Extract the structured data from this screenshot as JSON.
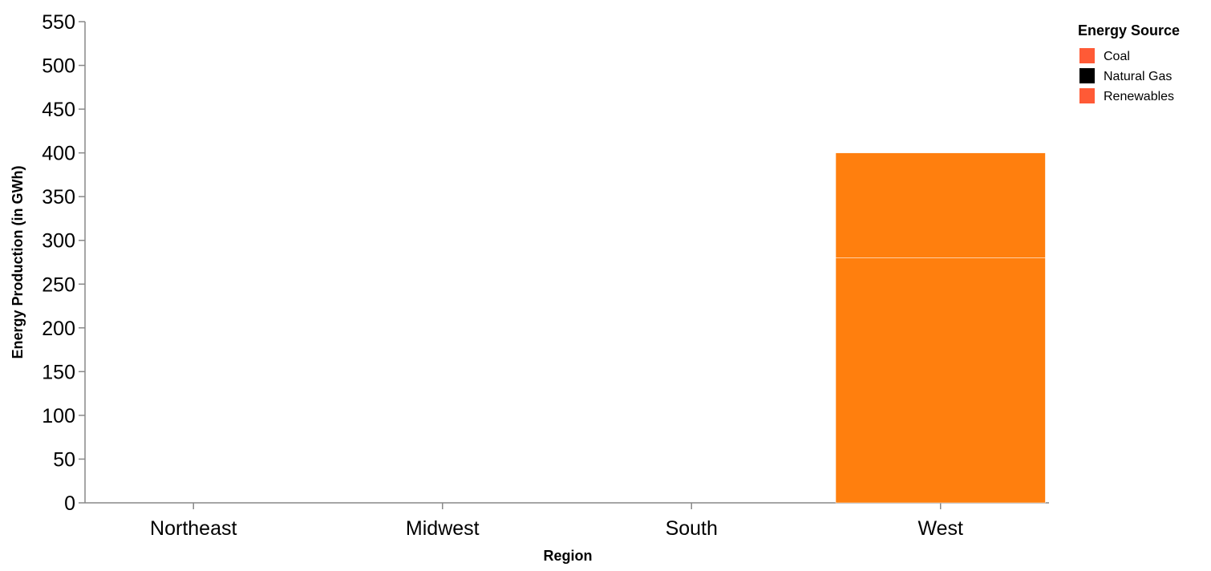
{
  "chart_data": {
    "type": "bar",
    "stacked": true,
    "title": "",
    "xlabel": "Region",
    "ylabel": "Energy Production (in GWh)",
    "categories": [
      "Northeast",
      "Midwest",
      "South",
      "West"
    ],
    "ylim": [
      0,
      550
    ],
    "yticks": [
      0,
      50,
      100,
      150,
      200,
      250,
      300,
      350,
      400,
      450,
      500,
      550
    ],
    "grid": false,
    "legend": {
      "title": "Energy Source",
      "placement": "top-right",
      "entries": [
        {
          "label": "Coal",
          "color": "#ff5a36"
        },
        {
          "label": "Natural Gas",
          "color": "#000000"
        },
        {
          "label": "Renewables",
          "color": "#ff5a36"
        }
      ]
    },
    "series": [
      {
        "name": "Coal",
        "values": [
          0,
          0,
          0,
          280
        ],
        "color": "#ff7f0e"
      },
      {
        "name": "Natural Gas",
        "values": [
          0,
          0,
          0,
          0
        ],
        "color": "#000000"
      },
      {
        "name": "Renewables",
        "values": [
          0,
          0,
          0,
          120
        ],
        "color": "#ff7f0e"
      }
    ],
    "axis_color": "#888888"
  }
}
